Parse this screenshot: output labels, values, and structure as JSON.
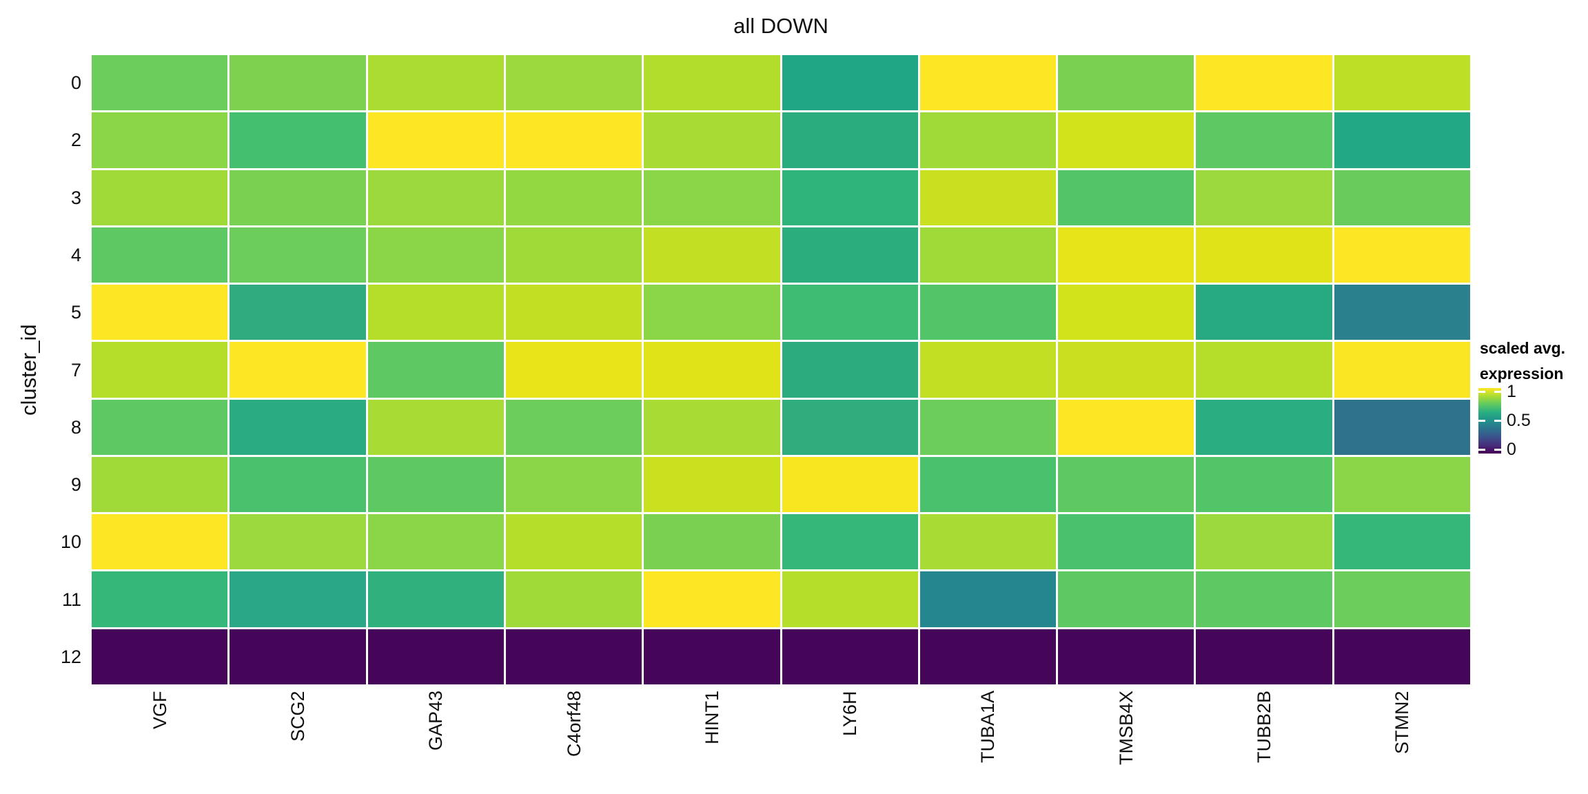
{
  "title": "all DOWN",
  "y_axis": {
    "title": "cluster_id",
    "tick_labels": [
      "0",
      "2",
      "3",
      "4",
      "5",
      "7",
      "8",
      "9",
      "10",
      "11",
      "12"
    ]
  },
  "x_axis": {
    "tick_labels": [
      "VGF",
      "SCG2",
      "GAP43",
      "C4orf48",
      "HINT1",
      "LY6H",
      "TUBA1A",
      "TMSB4X",
      "TUBB2B",
      "STMN2"
    ]
  },
  "legend": {
    "title_line1": "scaled avg.",
    "title_line2": "expression",
    "tick_labels": [
      "1",
      "0.5",
      "0"
    ],
    "colormap": "viridis"
  },
  "chart_data": {
    "type": "heatmap",
    "title": "all DOWN",
    "xlabel": "",
    "ylabel": "cluster_id",
    "legend_title": "scaled avg. expression",
    "x_categories": [
      "VGF",
      "SCG2",
      "GAP43",
      "C4orf48",
      "HINT1",
      "LY6H",
      "TUBA1A",
      "TMSB4X",
      "TUBB2B",
      "STMN2"
    ],
    "y_categories": [
      "0",
      "2",
      "3",
      "4",
      "5",
      "7",
      "8",
      "9",
      "10",
      "11",
      "12"
    ],
    "color_scale": {
      "type": "viridis",
      "domain": [
        0,
        1
      ],
      "ticks": [
        0,
        0.5,
        1
      ],
      "legend_position": "right"
    },
    "grid": false,
    "values": [
      [
        0.78,
        0.81,
        0.87,
        0.85,
        0.88,
        0.59,
        1.0,
        0.8,
        1.0,
        0.89
      ],
      [
        0.83,
        0.69,
        1.0,
        1.0,
        0.86,
        0.62,
        0.86,
        0.92,
        0.75,
        0.6
      ],
      [
        0.86,
        0.8,
        0.85,
        0.84,
        0.83,
        0.64,
        0.9,
        0.72,
        0.85,
        0.77
      ],
      [
        0.75,
        0.78,
        0.83,
        0.86,
        0.89,
        0.62,
        0.86,
        0.95,
        0.94,
        1.0
      ],
      [
        1.0,
        0.61,
        0.88,
        0.89,
        0.83,
        0.68,
        0.72,
        0.92,
        0.6,
        0.42
      ],
      [
        0.88,
        1.0,
        0.75,
        0.95,
        0.94,
        0.61,
        0.89,
        0.9,
        0.88,
        0.98
      ],
      [
        0.75,
        0.61,
        0.86,
        0.78,
        0.86,
        0.62,
        0.78,
        1.0,
        0.62,
        0.38
      ],
      [
        0.86,
        0.7,
        0.75,
        0.83,
        0.91,
        0.97,
        0.7,
        0.75,
        0.72,
        0.83
      ],
      [
        1.0,
        0.85,
        0.83,
        0.88,
        0.8,
        0.65,
        0.86,
        0.7,
        0.85,
        0.65
      ],
      [
        0.65,
        0.6,
        0.63,
        0.86,
        1.0,
        0.88,
        0.45,
        0.75,
        0.75,
        0.78
      ],
      [
        0.0,
        0.0,
        0.0,
        0.0,
        0.0,
        0.0,
        0.0,
        0.0,
        0.0,
        0.0
      ]
    ],
    "cell_colors": [
      [
        "#6ccd5a",
        "#7ed14f",
        "#aadc32",
        "#9bd93c",
        "#b2dd2d",
        "#21a685",
        "#fde725",
        "#7ad151",
        "#fde725",
        "#bddf26"
      ],
      [
        "#8bd646",
        "#44bf70",
        "#fde725",
        "#fde725",
        "#a8db34",
        "#2bac7e",
        "#a0da39",
        "#d2e21b",
        "#5ec962",
        "#22a884"
      ],
      [
        "#a0da39",
        "#7ad151",
        "#9bd93c",
        "#94d841",
        "#8bd646",
        "#2fb47c",
        "#c8e020",
        "#52c569",
        "#9bd93c",
        "#68cc5c"
      ],
      [
        "#5ec962",
        "#6ccd5a",
        "#8bd646",
        "#a0da39",
        "#c2df23",
        "#2bad7e",
        "#a0da39",
        "#e7e419",
        "#dfe318",
        "#fde725"
      ],
      [
        "#fde725",
        "#2fab7f",
        "#b5de2b",
        "#c2df23",
        "#8bd646",
        "#3fbc73",
        "#52c569",
        "#d2e21b",
        "#27a982",
        "#2a808c"
      ],
      [
        "#b5de2b",
        "#fde725",
        "#5ec962",
        "#e8e419",
        "#e0e318",
        "#2bab7e",
        "#c2df23",
        "#c8e020",
        "#b5de2b",
        "#fae622"
      ],
      [
        "#5ec962",
        "#2aab81",
        "#a8db34",
        "#6ccd5a",
        "#a8db34",
        "#2fad7c",
        "#6ccd5a",
        "#fde725",
        "#2aae81",
        "#2e728c"
      ],
      [
        "#a0da39",
        "#4ac16d",
        "#5ec962",
        "#8bd646",
        "#cae11f",
        "#f8e621",
        "#4ac16d",
        "#5ec962",
        "#52c569",
        "#8bd646"
      ],
      [
        "#fde725",
        "#9bd93c",
        "#8bd646",
        "#b5de2b",
        "#7ad151",
        "#35b779",
        "#a8db34",
        "#4ac16d",
        "#9bd93c",
        "#35b779"
      ],
      [
        "#35b779",
        "#2aa786",
        "#2fb07d",
        "#a0da39",
        "#fde725",
        "#b5de2b",
        "#24868e",
        "#5ec962",
        "#5ec962",
        "#6ccd5a"
      ],
      [
        "#450559",
        "#450559",
        "#450559",
        "#450559",
        "#450559",
        "#450559",
        "#450559",
        "#450559",
        "#450559",
        "#450559"
      ]
    ]
  }
}
